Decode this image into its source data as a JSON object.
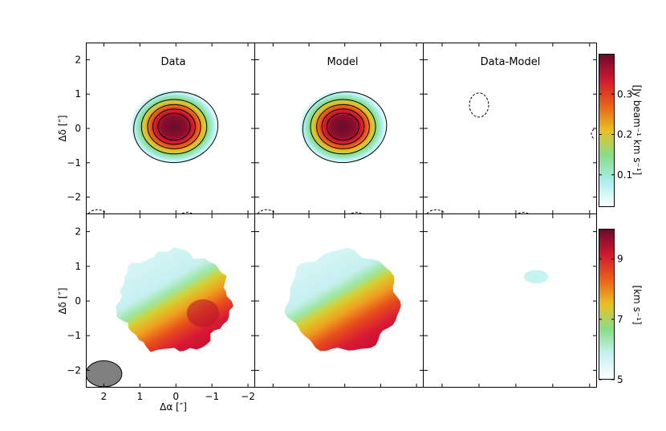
{
  "chart_data": [
    {
      "type": "heatmap",
      "panel": "moment0-data",
      "title": "Data",
      "xlim": [
        2.5,
        -2.2
      ],
      "ylim": [
        -2.5,
        2.5
      ],
      "contour_levels": [
        0.04,
        0.1,
        0.16,
        0.22,
        0.28
      ],
      "peak": 0.39,
      "center": [
        0.05,
        0.05
      ],
      "sigma": [
        0.55,
        0.48
      ]
    },
    {
      "type": "heatmap",
      "panel": "moment0-model",
      "title": "Model",
      "xlim": [
        2.5,
        -2.2
      ],
      "ylim": [
        -2.5,
        2.5
      ],
      "contour_levels": [
        0.04,
        0.1,
        0.16,
        0.22,
        0.28
      ],
      "peak": 0.39,
      "center": [
        0.05,
        0.05
      ],
      "sigma": [
        0.55,
        0.48
      ]
    },
    {
      "type": "heatmap",
      "panel": "moment0-residual",
      "title": "Data-Model",
      "xlim": [
        2.5,
        -2.2
      ],
      "ylim": [
        -2.5,
        2.5
      ],
      "negative_contours": [
        {
          "x": 1.0,
          "y": 0.68,
          "rx": 0.26,
          "ry": 0.35
        }
      ]
    },
    {
      "type": "heatmap",
      "panel": "moment1-data",
      "xlim": [
        2.5,
        -2.2
      ],
      "ylim": [
        -2.5,
        2.5
      ],
      "vsys": 7.0,
      "gradient_pa_deg": 30,
      "vmin": 5,
      "vmax": 10
    },
    {
      "type": "heatmap",
      "panel": "moment1-model",
      "xlim": [
        2.5,
        -2.2
      ],
      "ylim": [
        -2.5,
        2.5
      ],
      "vsys": 7.0,
      "gradient_pa_deg": 30,
      "vmin": 5,
      "vmax": 10
    },
    {
      "type": "heatmap",
      "panel": "moment1-residual",
      "xlim": [
        2.5,
        -2.2
      ],
      "ylim": [
        -2.5,
        2.5
      ],
      "residual_blob": {
        "x": -0.55,
        "y": 0.7,
        "value": 6.0
      }
    }
  ],
  "axes": {
    "ylabel": "Δδ [″]",
    "xlabel": "Δα [″]",
    "ytick_labels": [
      "2",
      "1",
      "0",
      "−1",
      "−2"
    ],
    "ytick_values": [
      2,
      1,
      0,
      -1,
      -2
    ],
    "xtick_labels": [
      "2",
      "1",
      "0",
      "−1",
      "−2"
    ],
    "xtick_values": [
      2,
      1,
      0,
      -1,
      -2
    ]
  },
  "colorbar_top": {
    "label": "[Jy beam⁻¹ km s⁻¹]",
    "range": [
      0.02,
      0.4
    ],
    "tick_values": [
      0.1,
      0.2,
      0.3
    ],
    "tick_labels": [
      "0.1",
      "0.2",
      "0.3"
    ],
    "colormap": [
      "#ffffff",
      "#aaeeee",
      "#88dd88",
      "#e8c020",
      "#e86018",
      "#d01830",
      "#6a0a2a"
    ]
  },
  "colorbar_bottom": {
    "label": "[km s⁻¹]",
    "range": [
      5,
      10
    ],
    "tick_values": [
      5,
      7,
      9
    ],
    "tick_labels": [
      "5",
      "7",
      "9"
    ],
    "colormap": [
      "#ffffff",
      "#c6f2f2",
      "#88dd88",
      "#e8c020",
      "#e86018",
      "#d01830",
      "#6a0a2a"
    ]
  },
  "beam": {
    "x": 2.0,
    "y": -2.1,
    "bmaj": 1.0,
    "bmin": 0.75
  }
}
